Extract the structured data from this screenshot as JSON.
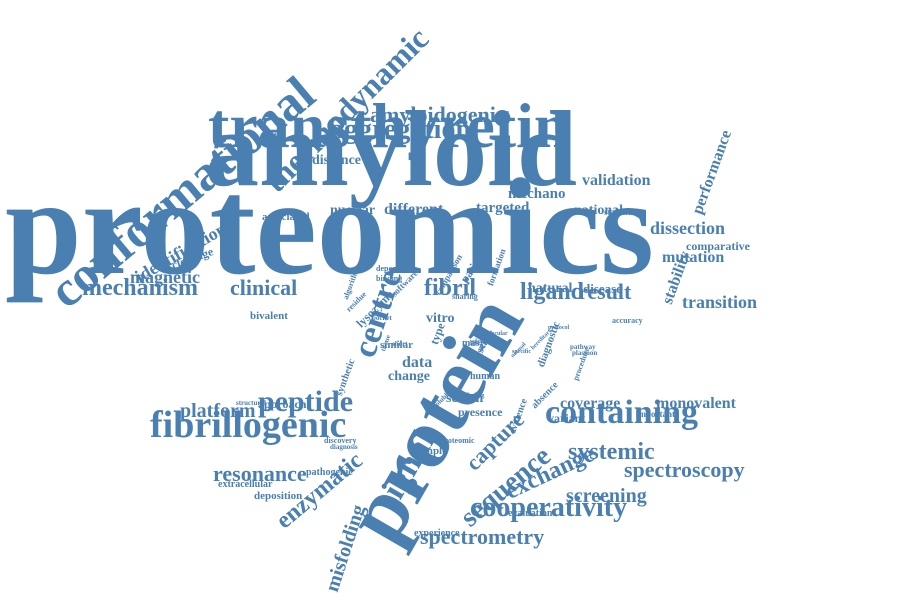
{
  "colors": {
    "word": "#4a7fb1",
    "background": "#ffffff"
  },
  "words": [
    "proteomics",
    "amyloid",
    "transthyretin",
    "protein",
    "conformational",
    "thermodynamic",
    "aggregation",
    "amyloidogenic",
    "fibrillogenic",
    "containing",
    "peptide",
    "signal",
    "sequence",
    "spectroscopy",
    "cooperativity",
    "spectrometry",
    "systemic",
    "exchange",
    "mechanism",
    "clinical",
    "ligand",
    "fibril",
    "result",
    "resonance",
    "enzymatic",
    "misfolding",
    "platform",
    "identification",
    "magnetic",
    "centre",
    "validation",
    "mechano",
    "dissection",
    "mutation",
    "transition",
    "monovalent",
    "screening",
    "stability",
    "performance",
    "presence",
    "distance",
    "nuclear",
    "different",
    "targeted",
    "national",
    "associated",
    "cleavage",
    "comparative",
    "coverage",
    "natural",
    "disease",
    "data",
    "change",
    "serum",
    "capture",
    "variant",
    "evaluation",
    "experience",
    "approach",
    "deposition",
    "extracellular",
    "pathogenic",
    "sample",
    "bivalent",
    "lysozyme",
    "vitro",
    "type",
    "similar",
    "synthetic",
    "patient",
    "diagnostic",
    "human",
    "laser",
    "study",
    "important",
    "accuracy",
    "stabilities",
    "comparison",
    "formation",
    "deposit",
    "binding",
    "software",
    "residue",
    "algorithm",
    "sharing",
    "pocket",
    "tissue",
    "short",
    "mas",
    "evidence",
    "absence",
    "pathway",
    "procedure",
    "plasmon",
    "normal",
    "specific",
    "structural",
    "discovery",
    "diagnosis",
    "proteomic",
    "insoluble",
    "finding",
    "fused",
    "label",
    "wild",
    "hereditary",
    "molecular",
    "protocol"
  ]
}
